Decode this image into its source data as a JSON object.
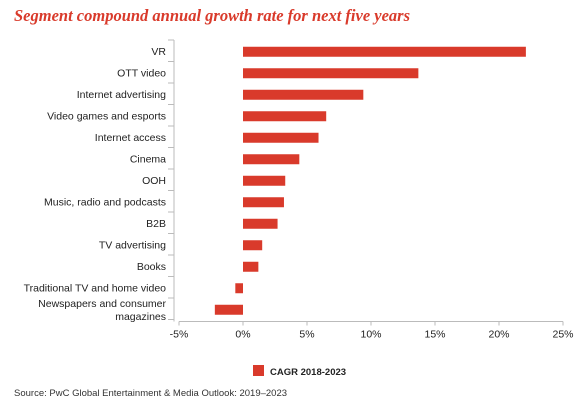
{
  "chart_data": {
    "type": "bar",
    "orientation": "horizontal",
    "title": "Segment compound annual growth rate for next five years",
    "categories": [
      "VR",
      "OTT video",
      "Internet advertising",
      "Video games and esports",
      "Internet access",
      "Cinema",
      "OOH",
      "Music, radio and podcasts",
      "B2B",
      "TV advertising",
      "Books",
      "Traditional TV and home video",
      "Newspapers and consumer magazines"
    ],
    "series": [
      {
        "name": "CAGR 2018-2023",
        "color": "#d93a2b",
        "values": [
          22.1,
          13.7,
          9.4,
          6.5,
          5.9,
          4.4,
          3.3,
          3.2,
          2.7,
          1.5,
          1.2,
          -0.6,
          -2.2
        ]
      }
    ],
    "xlim": [
      -5,
      25
    ],
    "xticks": [
      -5,
      0,
      5,
      10,
      15,
      20,
      25
    ],
    "xtick_labels": [
      "-5%",
      "0%",
      "5%",
      "10%",
      "15%",
      "20%",
      "25%"
    ],
    "xlabel": "",
    "ylabel": "",
    "grid": false,
    "legend_position": "bottom-center"
  },
  "source": "Source: PwC Global Entertainment & Media Outlook: 2019–2023"
}
